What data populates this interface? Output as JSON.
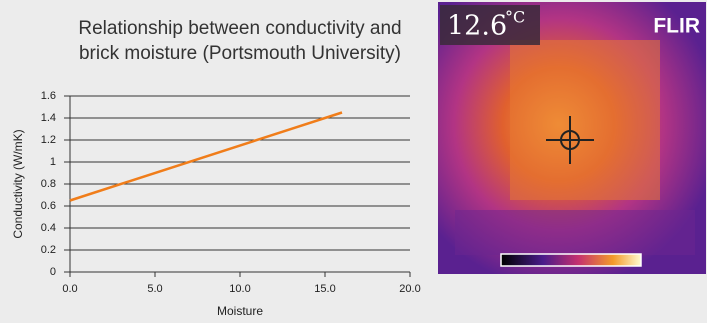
{
  "chart_data": {
    "type": "line",
    "title": "Relationship between conductivity and brick moisture (Portsmouth University)",
    "x_label": "Moisture",
    "y_label": "Conductivity (W/mK)",
    "x": [
      0,
      16
    ],
    "series": [
      {
        "name": "Conductivity",
        "color": "#f07d1a",
        "values": [
          0.65,
          1.45
        ]
      }
    ],
    "xlim": [
      0,
      20
    ],
    "xticks": [
      {
        "value": 0,
        "label": "0.0"
      },
      {
        "value": 5,
        "label": "5.0"
      },
      {
        "value": 10,
        "label": "10.0"
      },
      {
        "value": 15,
        "label": "15.0"
      },
      {
        "value": 20,
        "label": "20.0"
      }
    ],
    "ylim": [
      0,
      1.6
    ],
    "yticks": [
      0,
      0.2,
      0.4,
      0.6,
      0.8,
      1,
      1.2,
      1.4,
      1.6
    ],
    "grid": true
  },
  "thermal_image": {
    "temperature": "12.6",
    "unit": "°C",
    "logo": "FLIR"
  }
}
